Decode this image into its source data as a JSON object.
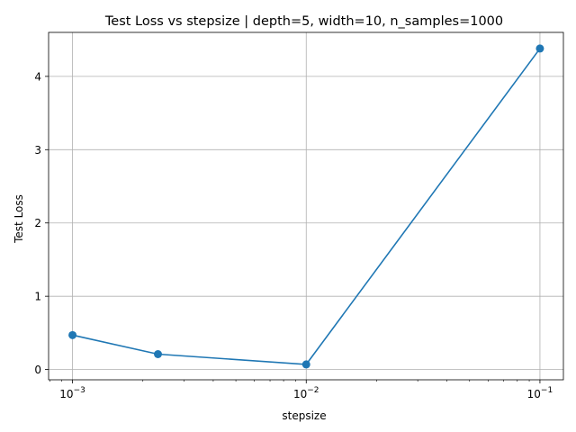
{
  "chart_data": {
    "type": "line",
    "title": "Test Loss vs stepsize | depth=5, width=10, n_samples=1000",
    "xlabel": "stepsize",
    "ylabel": "Test Loss",
    "xscale": "log",
    "xlim": [
      0.00079,
      0.126
    ],
    "ylim": [
      -0.14,
      4.6
    ],
    "xticks": [
      {
        "value": 0.001,
        "base": "10",
        "exp": "−3"
      },
      {
        "value": 0.01,
        "base": "10",
        "exp": "−2"
      },
      {
        "value": 0.1,
        "base": "10",
        "exp": "−1"
      }
    ],
    "yticks": [
      0,
      1,
      2,
      3,
      4
    ],
    "grid": true,
    "series": [
      {
        "color": "#1f77b4",
        "marker": "circle",
        "x": [
          0.001,
          0.00232,
          0.01,
          0.1
        ],
        "y": [
          0.47,
          0.21,
          0.07,
          4.38
        ]
      }
    ]
  }
}
